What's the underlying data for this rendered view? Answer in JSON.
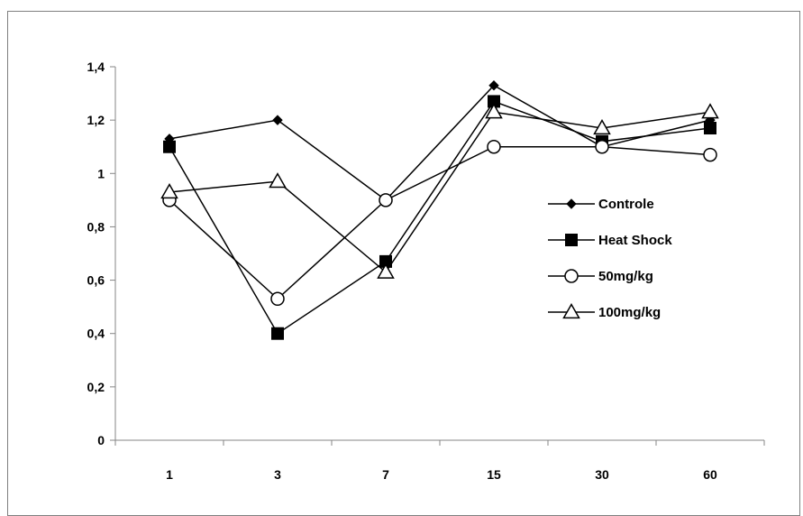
{
  "chart_data": {
    "type": "line",
    "title": "",
    "xlabel": "",
    "ylabel": "",
    "categories": [
      "1",
      "3",
      "7",
      "15",
      "30",
      "60"
    ],
    "y_ticks": [
      "0",
      "0,2",
      "0,4",
      "0,6",
      "0,8",
      "1",
      "1,2",
      "1,4"
    ],
    "ylim": [
      0,
      1.4
    ],
    "grid": false,
    "legend_position": "right",
    "series": [
      {
        "name": "Controle",
        "marker": "diamond",
        "values": [
          1.13,
          1.2,
          0.9,
          1.33,
          1.1,
          1.2
        ]
      },
      {
        "name": "Heat Shock",
        "marker": "square",
        "values": [
          1.1,
          0.4,
          0.67,
          1.27,
          1.12,
          1.17
        ]
      },
      {
        "name": "50mg/kg",
        "marker": "circle",
        "values": [
          0.9,
          0.53,
          0.9,
          1.1,
          1.1,
          1.07
        ]
      },
      {
        "name": "100mg/kg",
        "marker": "triangle",
        "values": [
          0.93,
          0.97,
          0.63,
          1.23,
          1.17,
          1.23
        ]
      }
    ],
    "colors": {
      "line": "#000000",
      "axis": "#868686"
    }
  }
}
